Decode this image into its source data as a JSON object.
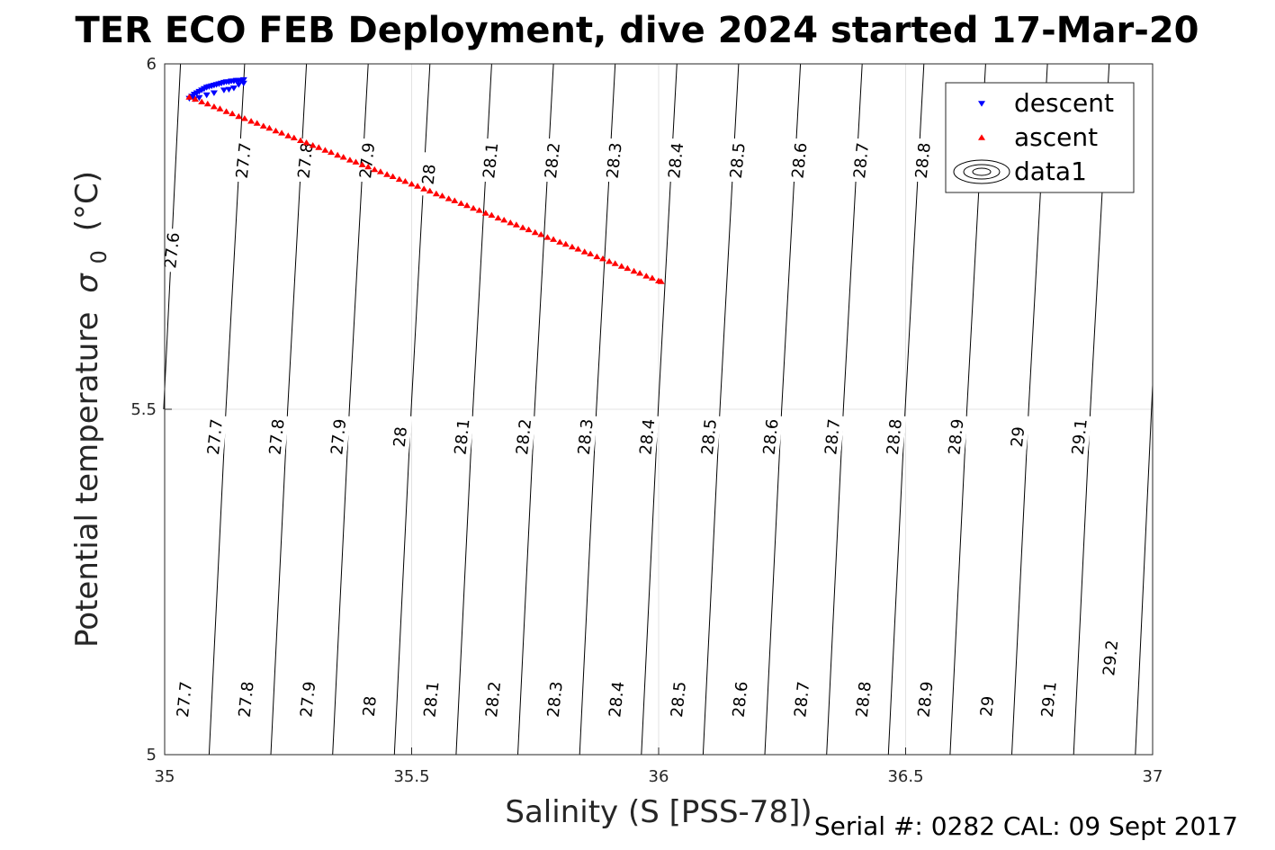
{
  "chart_data": {
    "type": "scatter",
    "title": "TER ECO FEB Deployment, dive 2024 started 17-Mar-20",
    "xlabel": "Salinity (S [PSS-78])",
    "ylabel_main": "Potential temperature",
    "ylabel_sigma": "σ",
    "ylabel_sub": "0",
    "ylabel_unit": "(°C)",
    "xlim": [
      35,
      37
    ],
    "ylim": [
      5,
      6
    ],
    "xticks": [
      35,
      35.5,
      36,
      36.5,
      37
    ],
    "xtick_labels": [
      "35",
      "35.5",
      "36",
      "36.5",
      "37"
    ],
    "yticks": [
      5,
      5.5,
      6
    ],
    "ytick_labels": [
      "5",
      "5.5",
      "6"
    ],
    "grid": true,
    "legend_position": "top-right",
    "legend": [
      {
        "label": "descent",
        "marker": "triangle-down",
        "color": "#0000ff"
      },
      {
        "label": "ascent",
        "marker": "triangle-up",
        "color": "#ff0000"
      },
      {
        "label": "data1",
        "marker": "contour",
        "color": "#000000"
      }
    ],
    "series": [
      {
        "name": "descent",
        "color": "#0000ff",
        "marker": "triangle-down",
        "points": [
          [
            35.05,
            5.95
          ],
          [
            35.055,
            5.953
          ],
          [
            35.06,
            5.956
          ],
          [
            35.065,
            5.958
          ],
          [
            35.07,
            5.96
          ],
          [
            35.075,
            5.962
          ],
          [
            35.08,
            5.964
          ],
          [
            35.085,
            5.966
          ],
          [
            35.09,
            5.967
          ],
          [
            35.095,
            5.968
          ],
          [
            35.1,
            5.969
          ],
          [
            35.105,
            5.97
          ],
          [
            35.11,
            5.971
          ],
          [
            35.115,
            5.972
          ],
          [
            35.12,
            5.973
          ],
          [
            35.125,
            5.974
          ],
          [
            35.13,
            5.974
          ],
          [
            35.135,
            5.975
          ],
          [
            35.14,
            5.975
          ],
          [
            35.145,
            5.976
          ],
          [
            35.15,
            5.976
          ],
          [
            35.155,
            5.976
          ],
          [
            35.16,
            5.977
          ],
          [
            35.14,
            5.965
          ],
          [
            35.13,
            5.963
          ],
          [
            35.12,
            5.962
          ],
          [
            35.1,
            5.958
          ],
          [
            35.085,
            5.955
          ],
          [
            35.07,
            5.951
          ],
          [
            35.06,
            5.949
          ],
          [
            35.15,
            5.97
          ],
          [
            35.16,
            5.972
          ]
        ]
      },
      {
        "name": "ascent",
        "color": "#ff0000",
        "marker": "triangle-up",
        "points": [
          [
            35.05,
            5.952
          ],
          [
            35.062,
            5.949
          ],
          [
            35.075,
            5.945
          ],
          [
            35.087,
            5.942
          ],
          [
            35.1,
            5.938
          ],
          [
            35.112,
            5.935
          ],
          [
            35.125,
            5.931
          ],
          [
            35.137,
            5.928
          ],
          [
            35.15,
            5.924
          ],
          [
            35.162,
            5.921
          ],
          [
            35.175,
            5.917
          ],
          [
            35.187,
            5.914
          ],
          [
            35.2,
            5.91
          ],
          [
            35.212,
            5.907
          ],
          [
            35.225,
            5.903
          ],
          [
            35.237,
            5.9
          ],
          [
            35.25,
            5.896
          ],
          [
            35.262,
            5.893
          ],
          [
            35.275,
            5.889
          ],
          [
            35.287,
            5.886
          ],
          [
            35.3,
            5.882
          ],
          [
            35.312,
            5.879
          ],
          [
            35.325,
            5.875
          ],
          [
            35.337,
            5.872
          ],
          [
            35.35,
            5.868
          ],
          [
            35.362,
            5.865
          ],
          [
            35.375,
            5.861
          ],
          [
            35.387,
            5.858
          ],
          [
            35.4,
            5.854
          ],
          [
            35.412,
            5.851
          ],
          [
            35.425,
            5.847
          ],
          [
            35.437,
            5.844
          ],
          [
            35.45,
            5.84
          ],
          [
            35.462,
            5.837
          ],
          [
            35.475,
            5.833
          ],
          [
            35.487,
            5.83
          ],
          [
            35.5,
            5.826
          ],
          [
            35.512,
            5.823
          ],
          [
            35.525,
            5.819
          ],
          [
            35.537,
            5.816
          ],
          [
            35.55,
            5.812
          ],
          [
            35.562,
            5.809
          ],
          [
            35.575,
            5.805
          ],
          [
            35.587,
            5.802
          ],
          [
            35.6,
            5.798
          ],
          [
            35.612,
            5.795
          ],
          [
            35.625,
            5.791
          ],
          [
            35.637,
            5.788
          ],
          [
            35.65,
            5.784
          ],
          [
            35.662,
            5.781
          ],
          [
            35.675,
            5.777
          ],
          [
            35.687,
            5.774
          ],
          [
            35.7,
            5.77
          ],
          [
            35.712,
            5.767
          ],
          [
            35.725,
            5.763
          ],
          [
            35.737,
            5.76
          ],
          [
            35.75,
            5.756
          ],
          [
            35.762,
            5.753
          ],
          [
            35.775,
            5.749
          ],
          [
            35.787,
            5.746
          ],
          [
            35.8,
            5.742
          ],
          [
            35.812,
            5.739
          ],
          [
            35.825,
            5.735
          ],
          [
            35.837,
            5.732
          ],
          [
            35.85,
            5.728
          ],
          [
            35.862,
            5.725
          ],
          [
            35.875,
            5.721
          ],
          [
            35.887,
            5.718
          ],
          [
            35.9,
            5.714
          ],
          [
            35.912,
            5.711
          ],
          [
            35.925,
            5.707
          ],
          [
            35.937,
            5.704
          ],
          [
            35.95,
            5.7
          ],
          [
            35.962,
            5.697
          ],
          [
            35.975,
            5.693
          ],
          [
            35.987,
            5.69
          ],
          [
            36.0,
            5.686
          ],
          [
            36.005,
            5.685
          ]
        ]
      }
    ],
    "contours": {
      "label": "data1",
      "color": "#000000",
      "lines": [
        {
          "value": 27.6,
          "points": [
            [
              35.032,
              6.0
            ],
            [
              34.998,
              5.5
            ]
          ]
        },
        {
          "value": 27.7,
          "points": [
            [
              35.162,
              6.0
            ],
            [
              35.124,
              5.5
            ],
            [
              35.09,
              5.0
            ]
          ]
        },
        {
          "value": 27.8,
          "points": [
            [
              35.287,
              6.0
            ],
            [
              35.249,
              5.5
            ],
            [
              35.215,
              5.0
            ]
          ]
        },
        {
          "value": 27.9,
          "points": [
            [
              35.412,
              6.0
            ],
            [
              35.374,
              5.5
            ],
            [
              35.34,
              5.0
            ]
          ]
        },
        {
          "value": 28.0,
          "points": [
            [
              35.537,
              6.0
            ],
            [
              35.499,
              5.5
            ],
            [
              35.465,
              5.0
            ]
          ]
        },
        {
          "value": 28.1,
          "points": [
            [
              35.662,
              6.0
            ],
            [
              35.624,
              5.5
            ],
            [
              35.59,
              5.0
            ]
          ]
        },
        {
          "value": 28.2,
          "points": [
            [
              35.787,
              6.0
            ],
            [
              35.749,
              5.5
            ],
            [
              35.715,
              5.0
            ]
          ]
        },
        {
          "value": 28.3,
          "points": [
            [
              35.912,
              6.0
            ],
            [
              35.874,
              5.5
            ],
            [
              35.84,
              5.0
            ]
          ]
        },
        {
          "value": 28.4,
          "points": [
            [
              36.037,
              6.0
            ],
            [
              35.999,
              5.5
            ],
            [
              35.965,
              5.0
            ]
          ]
        },
        {
          "value": 28.5,
          "points": [
            [
              36.162,
              6.0
            ],
            [
              36.124,
              5.5
            ],
            [
              36.09,
              5.0
            ]
          ]
        },
        {
          "value": 28.6,
          "points": [
            [
              36.287,
              6.0
            ],
            [
              36.249,
              5.5
            ],
            [
              36.215,
              5.0
            ]
          ]
        },
        {
          "value": 28.7,
          "points": [
            [
              36.412,
              6.0
            ],
            [
              36.374,
              5.5
            ],
            [
              36.34,
              5.0
            ]
          ]
        },
        {
          "value": 28.8,
          "points": [
            [
              36.537,
              6.0
            ],
            [
              36.499,
              5.5
            ],
            [
              36.465,
              5.0
            ]
          ]
        },
        {
          "value": 28.9,
          "points": [
            [
              36.662,
              6.0
            ],
            [
              36.624,
              5.5
            ],
            [
              36.59,
              5.0
            ]
          ]
        },
        {
          "value": 29.0,
          "points": [
            [
              36.787,
              6.0
            ],
            [
              36.749,
              5.5
            ],
            [
              36.715,
              5.0
            ]
          ]
        },
        {
          "value": 29.1,
          "points": [
            [
              36.912,
              6.0
            ],
            [
              36.874,
              5.5
            ],
            [
              36.84,
              5.0
            ]
          ]
        },
        {
          "value": 29.2,
          "points": [
            [
              37.0,
              5.535
            ],
            [
              36.965,
              5.0
            ]
          ]
        }
      ],
      "labels": [
        {
          "text": "27.6",
          "x": 35.015,
          "y": 5.73
        },
        {
          "text": "27.7",
          "x": 35.16,
          "y": 5.86
        },
        {
          "text": "27.8",
          "x": 35.285,
          "y": 5.86
        },
        {
          "text": "27.9",
          "x": 35.41,
          "y": 5.86
        },
        {
          "text": "28",
          "x": 35.535,
          "y": 5.84
        },
        {
          "text": "28.1",
          "x": 35.66,
          "y": 5.86
        },
        {
          "text": "28.2",
          "x": 35.785,
          "y": 5.86
        },
        {
          "text": "28.3",
          "x": 35.91,
          "y": 5.86
        },
        {
          "text": "28.4",
          "x": 36.035,
          "y": 5.86
        },
        {
          "text": "28.5",
          "x": 36.16,
          "y": 5.86
        },
        {
          "text": "28.6",
          "x": 36.285,
          "y": 5.86
        },
        {
          "text": "28.7",
          "x": 36.41,
          "y": 5.86
        },
        {
          "text": "28.8",
          "x": 36.535,
          "y": 5.86
        },
        {
          "text": "27.7",
          "x": 35.102,
          "y": 5.46
        },
        {
          "text": "27.8",
          "x": 35.227,
          "y": 5.46
        },
        {
          "text": "27.9",
          "x": 35.352,
          "y": 5.46
        },
        {
          "text": "28",
          "x": 35.477,
          "y": 5.46
        },
        {
          "text": "28.1",
          "x": 35.602,
          "y": 5.46
        },
        {
          "text": "28.2",
          "x": 35.727,
          "y": 5.46
        },
        {
          "text": "28.3",
          "x": 35.852,
          "y": 5.46
        },
        {
          "text": "28.4",
          "x": 35.977,
          "y": 5.46
        },
        {
          "text": "28.5",
          "x": 36.102,
          "y": 5.46
        },
        {
          "text": "28.6",
          "x": 36.227,
          "y": 5.46
        },
        {
          "text": "28.7",
          "x": 36.352,
          "y": 5.46
        },
        {
          "text": "28.8",
          "x": 36.477,
          "y": 5.46
        },
        {
          "text": "28.9",
          "x": 36.602,
          "y": 5.46
        },
        {
          "text": "29",
          "x": 36.727,
          "y": 5.46
        },
        {
          "text": "29.1",
          "x": 36.852,
          "y": 5.46
        },
        {
          "text": "27.7",
          "x": 35.04,
          "y": 5.08
        },
        {
          "text": "27.8",
          "x": 35.165,
          "y": 5.08
        },
        {
          "text": "27.9",
          "x": 35.29,
          "y": 5.08
        },
        {
          "text": "28",
          "x": 35.415,
          "y": 5.07
        },
        {
          "text": "28.1",
          "x": 35.54,
          "y": 5.08
        },
        {
          "text": "28.2",
          "x": 35.665,
          "y": 5.08
        },
        {
          "text": "28.3",
          "x": 35.79,
          "y": 5.08
        },
        {
          "text": "28.4",
          "x": 35.915,
          "y": 5.08
        },
        {
          "text": "28.5",
          "x": 36.04,
          "y": 5.08
        },
        {
          "text": "28.6",
          "x": 36.165,
          "y": 5.08
        },
        {
          "text": "28.7",
          "x": 36.29,
          "y": 5.08
        },
        {
          "text": "28.8",
          "x": 36.415,
          "y": 5.08
        },
        {
          "text": "28.9",
          "x": 36.54,
          "y": 5.08
        },
        {
          "text": "29",
          "x": 36.665,
          "y": 5.07
        },
        {
          "text": "29.1",
          "x": 36.79,
          "y": 5.08
        },
        {
          "text": "29.2",
          "x": 36.915,
          "y": 5.14
        }
      ]
    }
  },
  "footer": {
    "serial_text": "Serial #: 0282  CAL: 09 Sept 2017"
  }
}
